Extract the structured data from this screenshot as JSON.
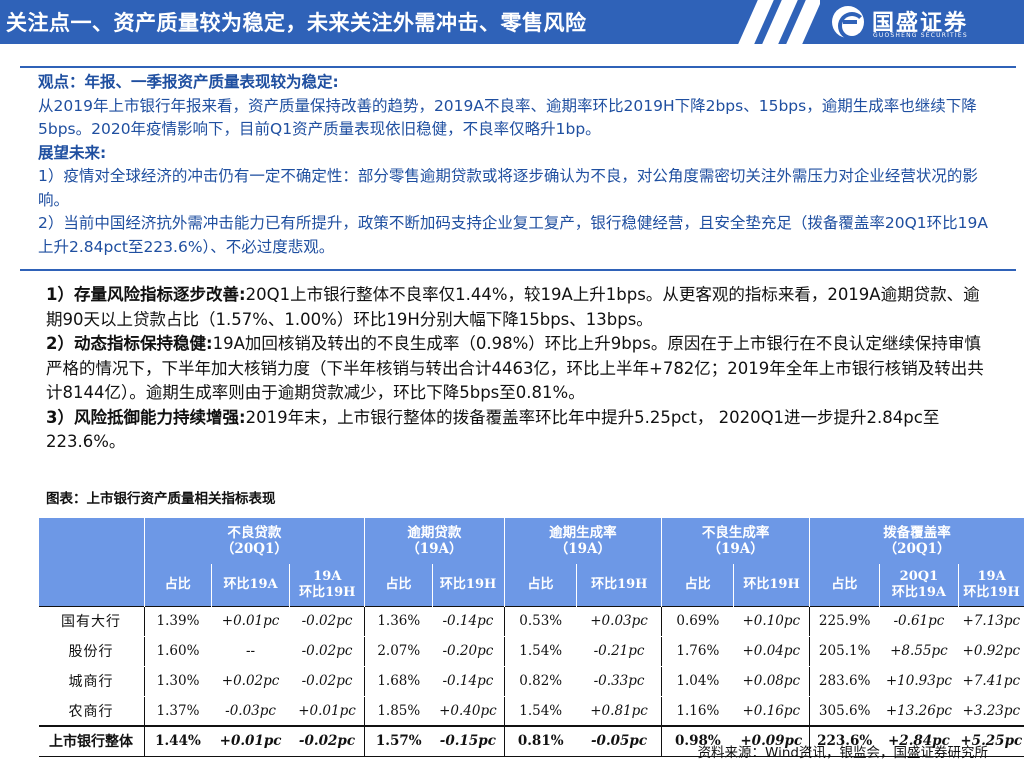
{
  "header": {
    "title": "关注点一、资产质量较为稳定，未来关注外需冲击、零售风险",
    "logo_name": "国盛证券",
    "logo_en": "GUOSHENG SECURITIES"
  },
  "outlook": {
    "view_label": "观点：年报、一季报资产质量表现较为稳定:",
    "view_text": "从2019年上市银行年报来看，资产质量保持改善的趋势，2019A不良率、逾期率环比2019H下降2bps、15bps，逾期生成率也继续下降5bps。2020年疫情影响下，目前Q1资产质量表现依旧稳健，不良率仅略升1bp。",
    "future_label": "展望未来:",
    "future_1": "1）疫情对全球经济的冲击仍有一定不确定性：部分零售逾期贷款或将逐步确认为不良，对公角度需密切关注外需压力对企业经营状况的影响。",
    "future_2": "2）当前中国经济抗外需冲击能力已有所提升，政策不断加码支持企业复工复产，银行稳健经营，且安全垫充足（拨备覆盖率20Q1环比19A上升2.84pct至223.6%）、不必过度悲观。"
  },
  "points": [
    {
      "head": "1）存量风险指标逐步改善:",
      "text": "20Q1上市银行整体不良率仅1.44%，较19A上升1bps。从更客观的指标来看，2019A逾期贷款、逾期90天以上贷款占比（1.57%、1.00%）环比19H分别大幅下降15bps、13bps。"
    },
    {
      "head": "2）动态指标保持稳健:",
      "text": "19A加回核销及转出的不良生成率（0.98%）环比上升9bps。原因在于上市银行在不良认定继续保持审慎严格的情况下，下半年加大核销力度（下半年核销与转出合计4463亿，环比上半年+782亿；2019年全年上市银行核销及转出共计8144亿）。逾期生成率则由于逾期贷款减少，环比下降5bps至0.81%。"
    },
    {
      "head": "3）风险抵御能力持续增强:",
      "text": "2019年末，上市银行整体的拨备覆盖率环比年中提升5.25pct，  2020Q1进一步提升2.84pc至223.6%。"
    }
  ],
  "table": {
    "caption": "图表：上市银行资产质量相关指标表现",
    "groups": [
      {
        "name": "不良贷款",
        "period": "（20Q1）"
      },
      {
        "name": "逾期贷款",
        "period": "（19A）"
      },
      {
        "name": "逾期生成率",
        "period": "（19A）"
      },
      {
        "name": "不良生成率",
        "period": "（19A）"
      },
      {
        "name": "拨备覆盖率",
        "period": "（20Q1）"
      }
    ],
    "subheaders": {
      "share": "占比",
      "qoq19a": "环比19A",
      "a19_line1": "19A",
      "a19_line2": "环比19H",
      "qoq19h": "环比19H",
      "q20_line1": "20Q1",
      "q20_line2": "环比19A"
    },
    "rows": [
      {
        "name": "国有大行",
        "v": [
          "1.39%",
          "+0.01pc",
          "-0.02pc",
          "1.36%",
          "-0.14pc",
          "0.53%",
          "+0.03pc",
          "0.69%",
          "+0.10pc",
          "225.9%",
          "-0.61pc",
          "+7.13pc"
        ]
      },
      {
        "name": "股份行",
        "v": [
          "1.60%",
          "--",
          "-0.02pc",
          "2.07%",
          "-0.20pc",
          "1.54%",
          "-0.21pc",
          "1.76%",
          "+0.04pc",
          "205.1%",
          "+8.55pc",
          "+0.92pc"
        ]
      },
      {
        "name": "城商行",
        "v": [
          "1.30%",
          "+0.02pc",
          "-0.02pc",
          "1.68%",
          "-0.14pc",
          "0.82%",
          "-0.33pc",
          "1.04%",
          "+0.08pc",
          "283.6%",
          "+10.93pc",
          "+7.41pc"
        ]
      },
      {
        "name": "农商行",
        "v": [
          "1.37%",
          "-0.03pc",
          "+0.01pc",
          "1.85%",
          "+0.40pc",
          "1.54%",
          "+0.81pc",
          "1.16%",
          "+0.16pc",
          "305.6%",
          "+13.26pc",
          "+3.23pc"
        ]
      },
      {
        "name": "上市银行整体",
        "v": [
          "1.44%",
          "+0.01pc",
          "-0.02pc",
          "1.57%",
          "-0.15pc",
          "0.81%",
          "-0.05pc",
          "0.98%",
          "+0.09pc",
          "223.6%",
          "+2.84pc",
          "+5.25pc"
        ]
      }
    ]
  },
  "source": "资料来源：Wind资讯，银监会，国盛证券研究所",
  "colors": {
    "brand_blue": "#2f62b8",
    "table_header": "#6d98e6",
    "outlook_text": "#1f4fa0"
  }
}
